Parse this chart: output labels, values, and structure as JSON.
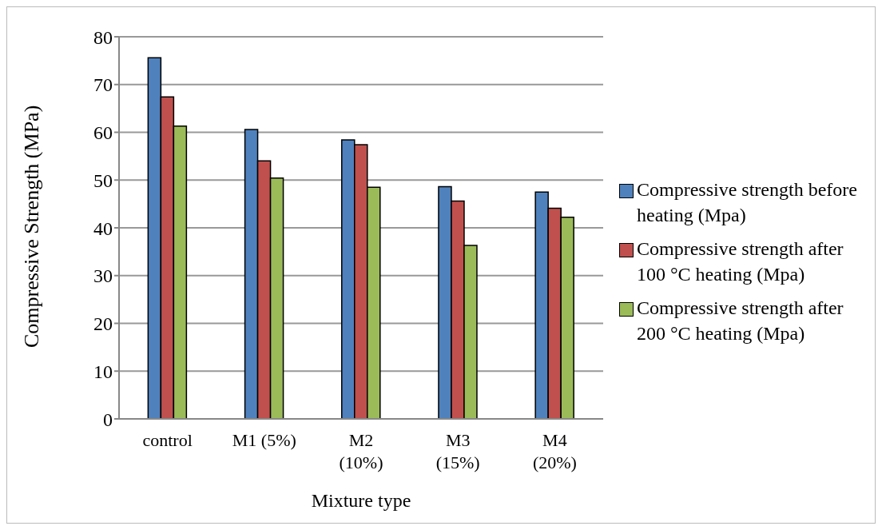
{
  "chart_data": {
    "type": "bar",
    "xlabel": "Mixture type",
    "ylabel": "Compressive Strength (MPa)",
    "categories": [
      "control",
      "M1 (5%)",
      "M2 (10%)",
      "M3 (15%)",
      "M4 (20%)"
    ],
    "series": [
      {
        "name": "Compressive strength before heating (Mpa)",
        "color": "#4f81bd",
        "values": [
          75.6,
          60.6,
          58.4,
          48.6,
          47.5
        ]
      },
      {
        "name": "Compressive strength after 100 °C heating (Mpa)",
        "color": "#c0504d",
        "values": [
          67.4,
          54.0,
          57.4,
          45.6,
          44.1
        ]
      },
      {
        "name": "Compressive strength after 200 °C heating (Mpa)",
        "color": "#9bbb59",
        "values": [
          61.3,
          50.4,
          48.5,
          36.3,
          42.2
        ]
      }
    ],
    "ylim": [
      0,
      80
    ],
    "yticks": [
      0,
      10,
      20,
      30,
      40,
      50,
      60,
      70,
      80
    ],
    "grid": "y",
    "legend": "right"
  }
}
